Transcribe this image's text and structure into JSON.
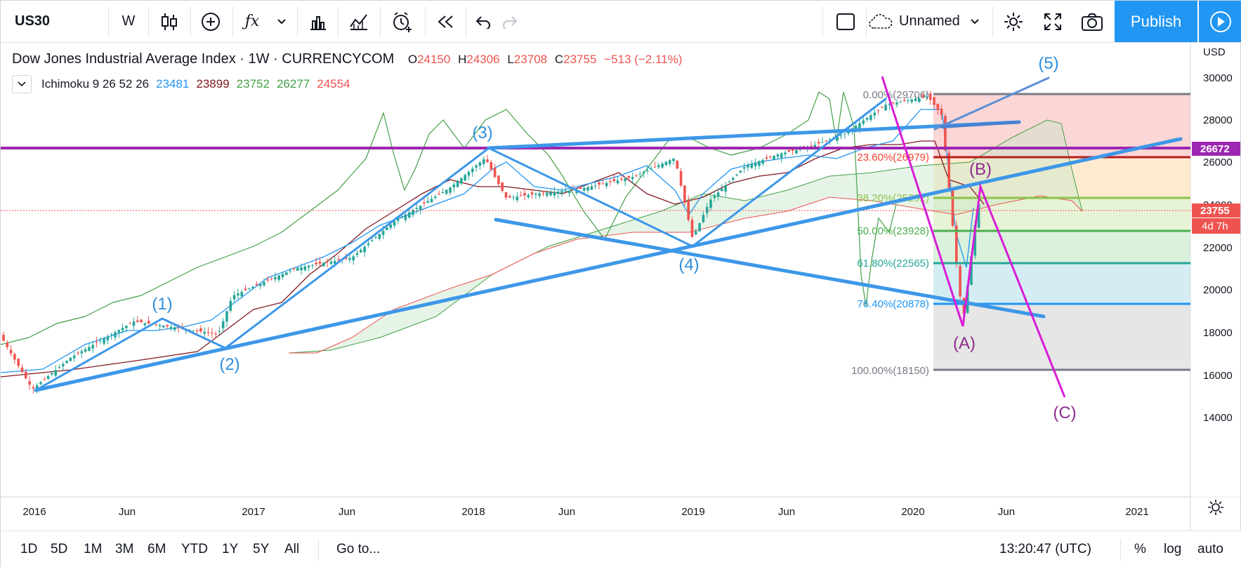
{
  "toolbar": {
    "symbol": "US30",
    "interval": "W",
    "layout_name": "Unnamed",
    "publish_label": "Publish"
  },
  "legend": {
    "title": "Dow Jones Industrial Average Index · 1W · CURRENCYCOM",
    "open_label": "O",
    "open": "24150",
    "high_label": "H",
    "high": "24306",
    "low_label": "L",
    "low": "23708",
    "close_label": "C",
    "close": "23755",
    "change": "−513 (−2.11%)"
  },
  "indicator": {
    "name": "Ichimoku 9 26 52 26",
    "values": [
      "23481",
      "23899",
      "23752",
      "26277",
      "24554"
    ],
    "colors": [
      "#2196f3",
      "#801922",
      "#43a047",
      "#43a047",
      "#ef5350"
    ]
  },
  "price_scale": {
    "currency": "USD",
    "ticks": [
      "30000",
      "28000",
      "26000",
      "24000",
      "22000",
      "20000",
      "18000",
      "16000",
      "14000"
    ],
    "hline_label": "26672",
    "last_price": "23755",
    "countdown": "4d 7h"
  },
  "time_scale": {
    "ticks": [
      "2016",
      "Jun",
      "2017",
      "Jun",
      "2018",
      "Jun",
      "2019",
      "Jun",
      "2020",
      "Jun",
      "2021"
    ]
  },
  "fibonacci": [
    {
      "label": "0.00%(29706)",
      "color": "#787b86"
    },
    {
      "label": "23.60%(26979)",
      "color": "#f44336"
    },
    {
      "label": "38.20%(25292)",
      "color": "#8bc34a"
    },
    {
      "label": "50.00%(23928)",
      "color": "#4caf50"
    },
    {
      "label": "61.80%(22565)",
      "color": "#26a69a"
    },
    {
      "label": "76.40%(20878)",
      "color": "#2196f3"
    },
    {
      "label": "100.00%(18150)",
      "color": "#787b86"
    }
  ],
  "wave_labels": {
    "w1": "(1)",
    "w2": "(2)",
    "w3": "(3)",
    "w4": "(4)",
    "w5": "(5)",
    "wa": "(A)",
    "wb": "(B)",
    "wc": "(C)"
  },
  "colors": {
    "accent": "#2196f3",
    "up": "#26a69a",
    "down": "#ef5350",
    "trendline": "#3d97e8",
    "corrective": "#d81bd8",
    "hline": "#9c27b0"
  },
  "bottom": {
    "ranges": [
      "1D",
      "5D",
      "1M",
      "3M",
      "6M",
      "YTD",
      "1Y",
      "5Y",
      "All"
    ],
    "goto": "Go to...",
    "clock": "13:20:47 (UTC)",
    "percent": "%",
    "log": "log",
    "auto": "auto"
  }
}
